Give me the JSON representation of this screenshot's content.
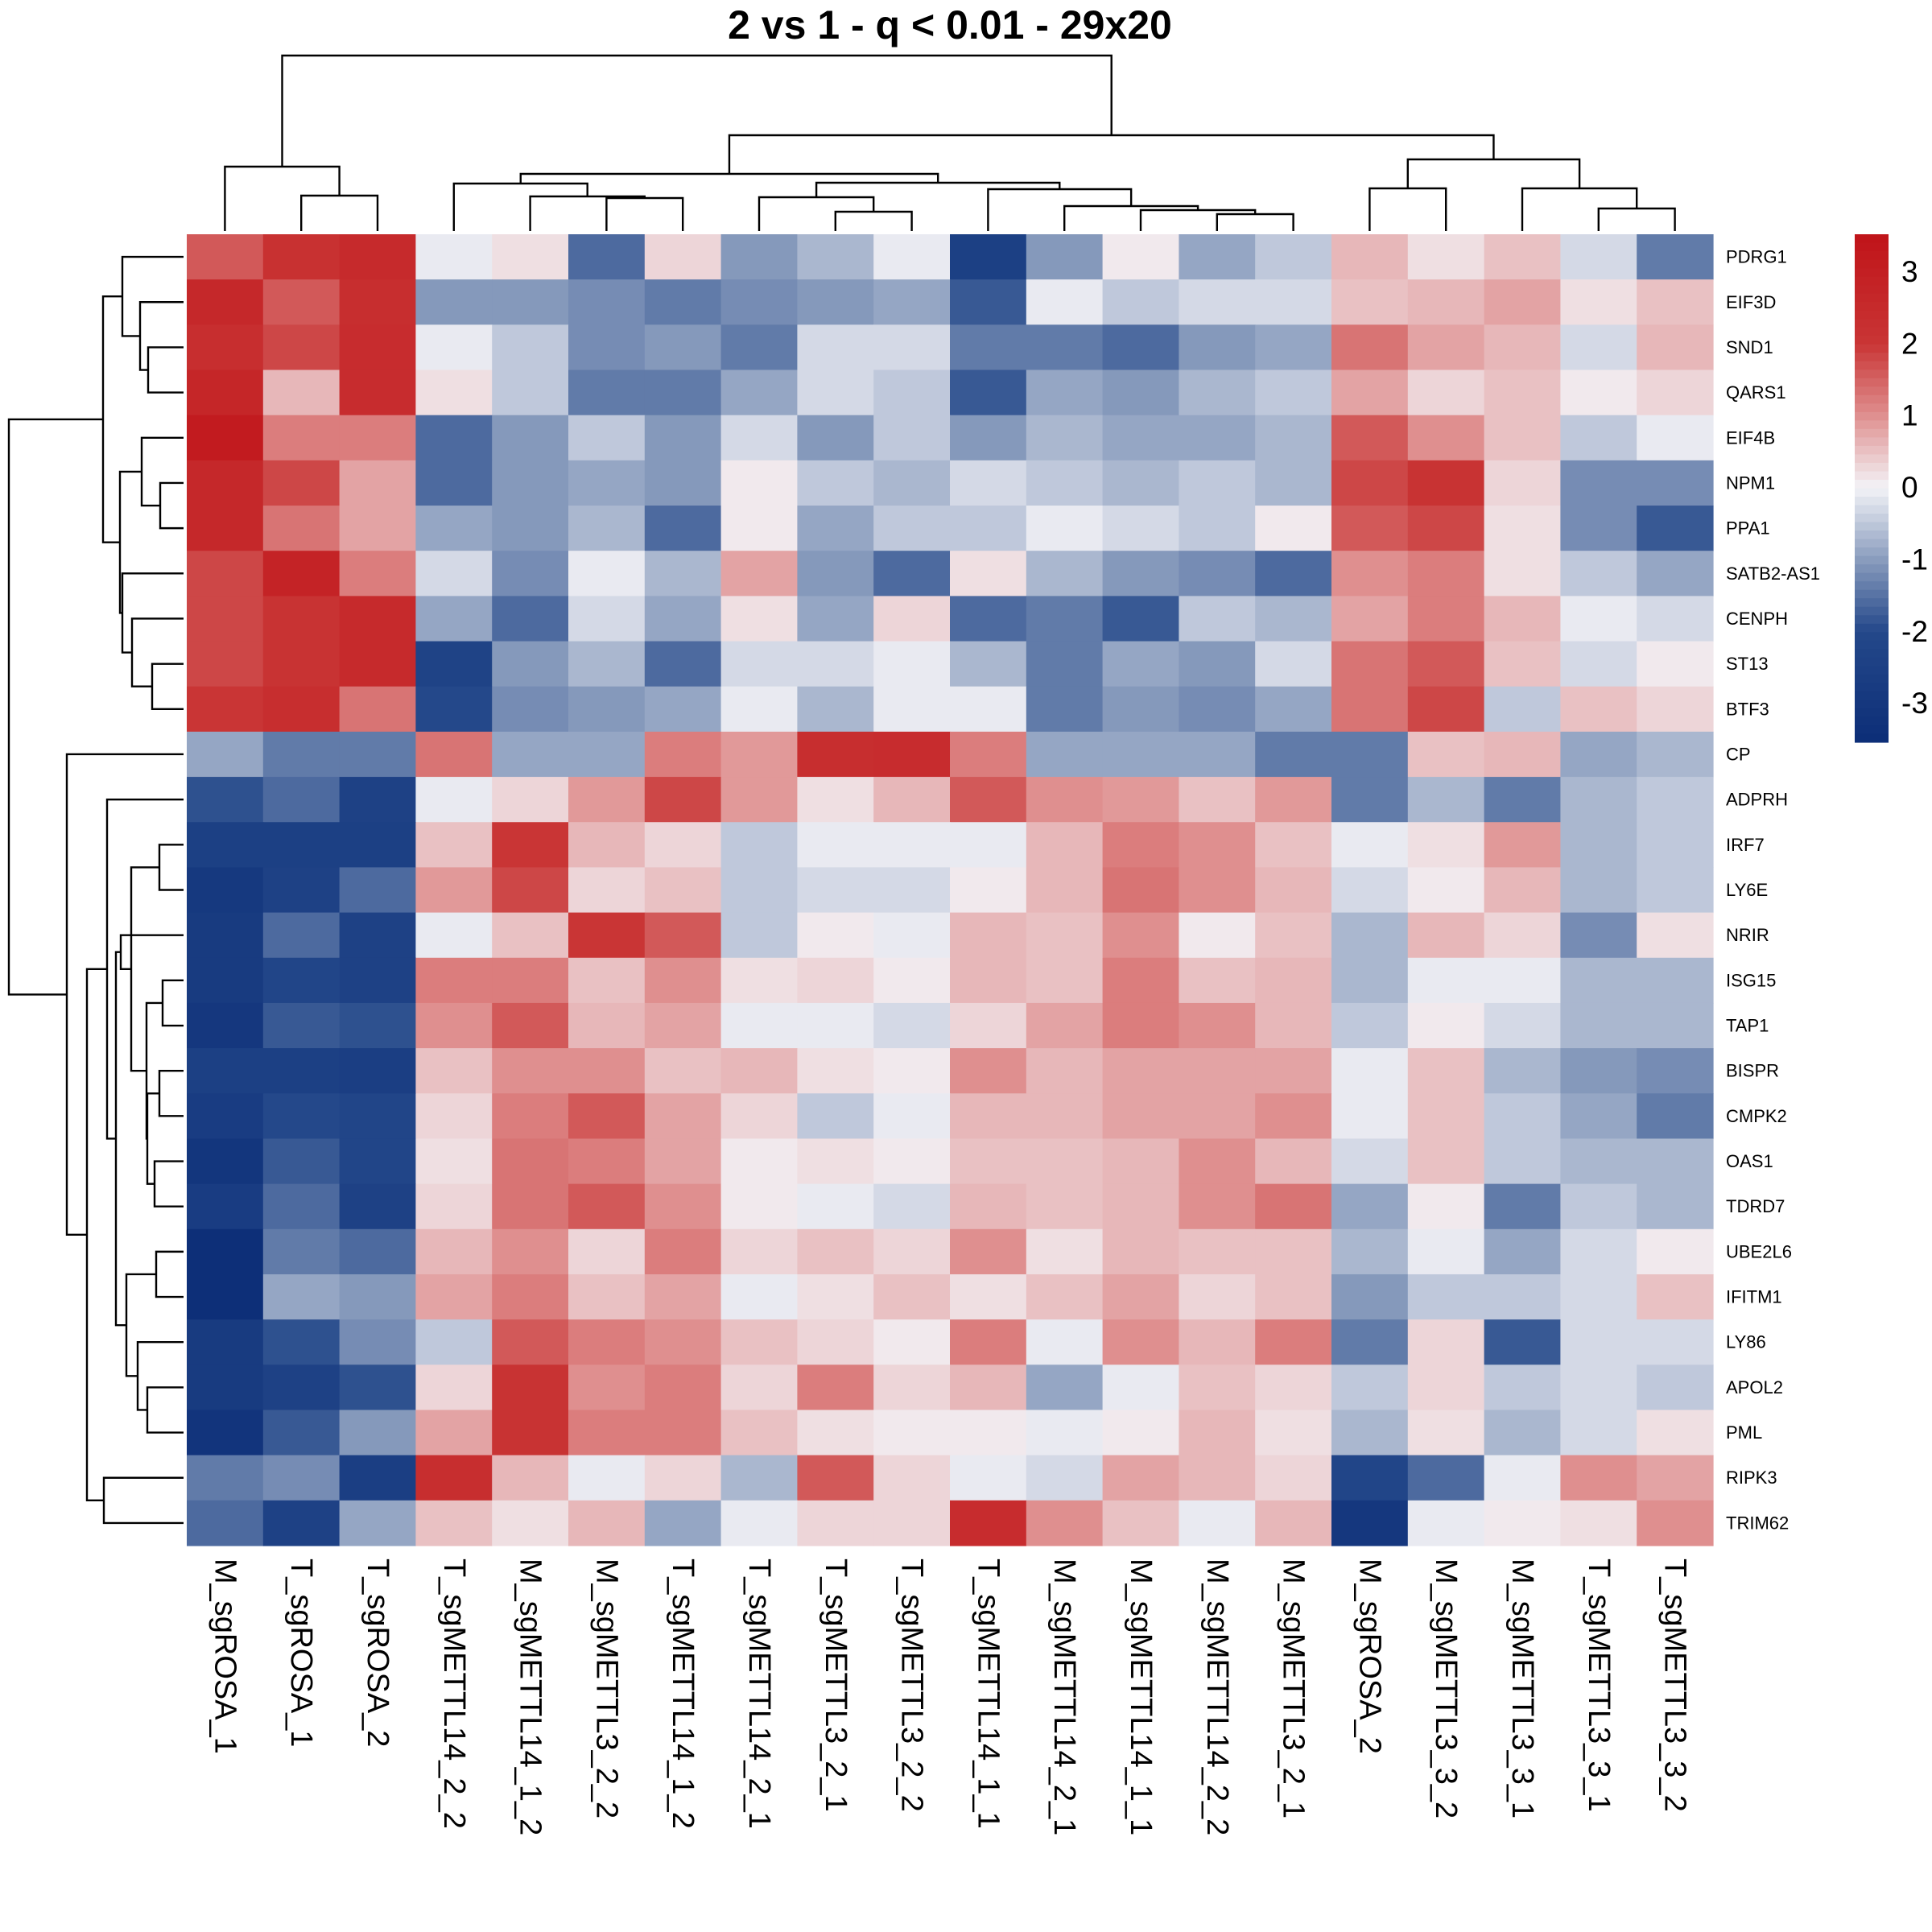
{
  "chart_data": {
    "type": "heatmap",
    "title": "2 vs 1 - q < 0.01 - 29x20",
    "rows": [
      "PDRG1",
      "EIF3D",
      "SND1",
      "QARS1",
      "EIF4B",
      "NPM1",
      "PPA1",
      "SATB2-AS1",
      "CENPH",
      "ST13",
      "BTF3",
      "CP",
      "ADPRH",
      "IRF7",
      "LY6E",
      "NRIR",
      "ISG15",
      "TAP1",
      "BISPR",
      "CMPK2",
      "OAS1",
      "TDRD7",
      "UBE2L6",
      "IFITM1",
      "LY86",
      "APOL2",
      "PML",
      "RIPK3",
      "TRIM62"
    ],
    "columns": [
      "M_sgROSA_1",
      "T_sgROSA_1",
      "T_sgROSA_2",
      "T_sgMETTL14_2_2",
      "M_sgMETTL14_1_2",
      "M_sgMETTL3_2_2",
      "T_sgMETTL14_1_2",
      "T_sgMETTL14_2_1",
      "T_sgMETTL3_2_1",
      "T_sgMETTL3_2_2",
      "T_sgMETTL14_1_1",
      "M_sgMETTL14_2_1",
      "M_sgMETTL14_1_1",
      "M_sgMETTL14_2_2",
      "M_sgMETTL3_2_1",
      "M_sgROSA_2",
      "M_sgMETTL3_3_2",
      "M_sgMETTL3_3_1",
      "T_sgMETTL3_3_1",
      "T_sgMETTL3_3_2"
    ],
    "values": [
      [
        1.6,
        2.2,
        2.5,
        -0.1,
        0.2,
        -1.6,
        0.3,
        -1.05,
        -0.7,
        -0.1,
        -2.5,
        -1.05,
        0.1,
        -0.9,
        -0.5,
        0.6,
        0.2,
        0.5,
        -0.3,
        -1.4
      ],
      [
        2.6,
        1.6,
        2.3,
        -1.05,
        -1.05,
        -1.2,
        -1.4,
        -1.2,
        -1.05,
        -0.9,
        -1.8,
        -0.1,
        -0.5,
        -0.3,
        -0.3,
        0.5,
        0.6,
        0.8,
        0.2,
        0.5
      ],
      [
        2.3,
        1.8,
        2.4,
        -0.1,
        -0.5,
        -1.2,
        -1.05,
        -1.4,
        -0.3,
        -0.3,
        -1.4,
        -1.4,
        -1.6,
        -1.05,
        -0.9,
        1.3,
        0.8,
        0.6,
        -0.3,
        0.6
      ],
      [
        2.7,
        0.6,
        2.4,
        0.2,
        -0.5,
        -1.4,
        -1.4,
        -0.9,
        -0.3,
        -0.5,
        -1.8,
        -0.9,
        -1.05,
        -0.7,
        -0.5,
        0.8,
        0.3,
        0.5,
        0.1,
        0.3
      ],
      [
        3.2,
        1.2,
        1.2,
        -1.6,
        -1.05,
        -0.5,
        -1.05,
        -0.3,
        -1.05,
        -0.5,
        -1.05,
        -0.7,
        -0.9,
        -0.9,
        -0.7,
        1.6,
        1.0,
        0.5,
        -0.5,
        -0.1
      ],
      [
        2.6,
        1.8,
        0.8,
        -1.6,
        -1.05,
        -0.9,
        -1.05,
        0.1,
        -0.5,
        -0.7,
        -0.3,
        -0.5,
        -0.7,
        -0.5,
        -0.7,
        1.8,
        2.1,
        0.3,
        -1.2,
        -1.2
      ],
      [
        2.6,
        1.3,
        0.8,
        -0.9,
        -1.05,
        -0.7,
        -1.6,
        0.1,
        -0.9,
        -0.5,
        -0.5,
        -0.1,
        -0.3,
        -0.5,
        0.1,
        1.6,
        1.8,
        0.2,
        -1.2,
        -1.8
      ],
      [
        1.8,
        2.8,
        1.2,
        -0.3,
        -1.2,
        -0.1,
        -0.7,
        0.8,
        -1.05,
        -1.6,
        0.2,
        -0.7,
        -1.05,
        -1.2,
        -1.6,
        1.0,
        1.2,
        0.2,
        -0.5,
        -0.9
      ],
      [
        1.8,
        2.1,
        2.5,
        -0.9,
        -1.6,
        -0.3,
        -0.9,
        0.2,
        -0.9,
        0.3,
        -1.6,
        -1.4,
        -1.8,
        -0.5,
        -0.7,
        0.8,
        1.2,
        0.6,
        -0.1,
        -0.3
      ],
      [
        1.8,
        2.1,
        2.5,
        -2.3,
        -1.05,
        -0.7,
        -1.6,
        -0.3,
        -0.3,
        -0.1,
        -0.7,
        -1.4,
        -0.9,
        -1.05,
        -0.3,
        1.3,
        1.6,
        0.5,
        -0.3,
        0.1
      ],
      [
        2.0,
        2.3,
        1.3,
        -2.0,
        -1.2,
        -1.05,
        -0.9,
        -0.1,
        -0.7,
        -0.1,
        -0.1,
        -1.4,
        -1.05,
        -1.2,
        -0.9,
        1.3,
        1.8,
        -0.5,
        0.5,
        0.3
      ],
      [
        -0.9,
        -1.4,
        -1.4,
        1.3,
        -0.9,
        -0.9,
        1.2,
        0.9,
        2.3,
        2.4,
        1.2,
        -0.9,
        -0.9,
        -0.9,
        -1.4,
        -1.4,
        0.5,
        0.6,
        -0.9,
        -0.7
      ],
      [
        -1.9,
        -1.6,
        -2.4,
        -0.1,
        0.3,
        0.9,
        1.8,
        0.9,
        0.2,
        0.6,
        1.6,
        1.0,
        0.9,
        0.5,
        0.9,
        -1.4,
        -0.7,
        -1.4,
        -0.7,
        -0.5
      ],
      [
        -2.5,
        -2.5,
        -2.5,
        0.5,
        2.0,
        0.6,
        0.3,
        -0.5,
        -0.1,
        -0.1,
        -0.1,
        0.6,
        1.2,
        1.0,
        0.5,
        -0.1,
        0.2,
        0.9,
        -0.7,
        -0.5
      ],
      [
        -2.9,
        -2.4,
        -1.6,
        0.9,
        1.8,
        0.3,
        0.5,
        -0.5,
        -0.3,
        -0.3,
        0.1,
        0.6,
        1.3,
        1.0,
        0.6,
        -0.3,
        0.1,
        0.6,
        -0.7,
        -0.5
      ],
      [
        -2.8,
        -1.6,
        -2.4,
        -0.1,
        0.5,
        2.0,
        1.6,
        -0.5,
        0.1,
        -0.1,
        0.6,
        0.5,
        1.0,
        0.1,
        0.5,
        -0.7,
        0.6,
        0.3,
        -1.2,
        0.2
      ],
      [
        -2.8,
        -2.2,
        -2.4,
        1.2,
        1.2,
        0.5,
        1.0,
        0.2,
        0.3,
        0.1,
        0.6,
        0.5,
        1.2,
        0.5,
        0.6,
        -0.7,
        -0.1,
        -0.1,
        -0.7,
        -0.7
      ],
      [
        -3.0,
        -1.8,
        -1.9,
        1.0,
        1.6,
        0.6,
        0.8,
        -0.1,
        -0.1,
        -0.3,
        0.3,
        0.8,
        1.2,
        1.0,
        0.6,
        -0.5,
        0.1,
        -0.3,
        -0.7,
        -0.7
      ],
      [
        -2.5,
        -2.5,
        -2.6,
        0.5,
        1.0,
        1.0,
        0.5,
        0.6,
        0.2,
        0.1,
        1.0,
        0.6,
        0.8,
        0.8,
        0.8,
        -0.1,
        0.5,
        -0.7,
        -1.05,
        -1.2
      ],
      [
        -2.7,
        -2.0,
        -2.2,
        0.3,
        1.2,
        1.6,
        0.8,
        0.3,
        -0.5,
        -0.1,
        0.6,
        0.6,
        0.8,
        0.8,
        1.0,
        -0.1,
        0.5,
        -0.5,
        -0.9,
        -1.4
      ],
      [
        -3.1,
        -1.8,
        -2.2,
        0.2,
        1.3,
        1.2,
        0.8,
        0.1,
        0.2,
        0.1,
        0.5,
        0.5,
        0.6,
        1.0,
        0.6,
        -0.3,
        0.5,
        -0.5,
        -0.7,
        -0.7
      ],
      [
        -2.7,
        -1.6,
        -2.4,
        0.3,
        1.3,
        1.6,
        1.0,
        0.1,
        -0.1,
        -0.3,
        0.6,
        0.5,
        0.6,
        1.0,
        1.3,
        -0.9,
        0.1,
        -1.4,
        -0.5,
        -0.7
      ],
      [
        -3.5,
        -1.4,
        -1.6,
        0.6,
        1.0,
        0.3,
        1.2,
        0.3,
        0.5,
        0.3,
        1.0,
        0.2,
        0.6,
        0.5,
        0.5,
        -0.7,
        -0.1,
        -0.9,
        -0.3,
        0.1
      ],
      [
        -3.5,
        -0.9,
        -1.05,
        0.8,
        1.2,
        0.5,
        0.8,
        -0.1,
        0.2,
        0.5,
        0.2,
        0.5,
        0.8,
        0.3,
        0.5,
        -1.05,
        -0.5,
        -0.5,
        -0.3,
        0.5
      ],
      [
        -2.8,
        -1.9,
        -1.2,
        -0.5,
        1.6,
        1.2,
        1.0,
        0.5,
        0.3,
        0.1,
        1.2,
        -0.1,
        1.0,
        0.6,
        1.2,
        -1.4,
        0.3,
        -1.8,
        -0.3,
        -0.3
      ],
      [
        -2.8,
        -2.4,
        -1.9,
        0.3,
        2.1,
        1.0,
        1.2,
        0.3,
        1.2,
        0.3,
        0.6,
        -0.9,
        -0.1,
        0.5,
        0.3,
        -0.5,
        0.3,
        -0.5,
        -0.3,
        -0.5
      ],
      [
        -3.2,
        -1.8,
        -1.05,
        0.8,
        2.1,
        1.2,
        1.2,
        0.5,
        0.2,
        0.1,
        0.1,
        -0.1,
        0.1,
        0.6,
        0.2,
        -0.7,
        0.2,
        -0.7,
        -0.3,
        0.2
      ],
      [
        -1.4,
        -1.2,
        -2.6,
        2.3,
        0.6,
        -0.1,
        0.3,
        -0.7,
        1.6,
        0.3,
        -0.1,
        -0.3,
        0.8,
        0.6,
        0.3,
        -2.2,
        -1.6,
        -0.1,
        1.0,
        0.8
      ],
      [
        -1.6,
        -2.4,
        -0.9,
        0.5,
        0.2,
        0.6,
        -0.9,
        -0.1,
        0.3,
        0.3,
        2.4,
        1.0,
        0.5,
        -0.1,
        0.6,
        -3.0,
        -0.1,
        0.1,
        0.2,
        1.0
      ]
    ],
    "color_range": [
      -3.5,
      3.5
    ],
    "color_low": "#0d2f78",
    "color_mid": "#f3f3f7",
    "color_high": "#c01419",
    "legend_ticks": [
      "3",
      "2",
      "1",
      "0",
      "-1",
      "-2",
      "-3"
    ],
    "legend_tick_values": [
      3,
      2,
      1,
      0,
      -1,
      -2,
      -3
    ],
    "legend_placement": "right",
    "row_dendrogram": "left",
    "column_dendrogram": "top"
  }
}
